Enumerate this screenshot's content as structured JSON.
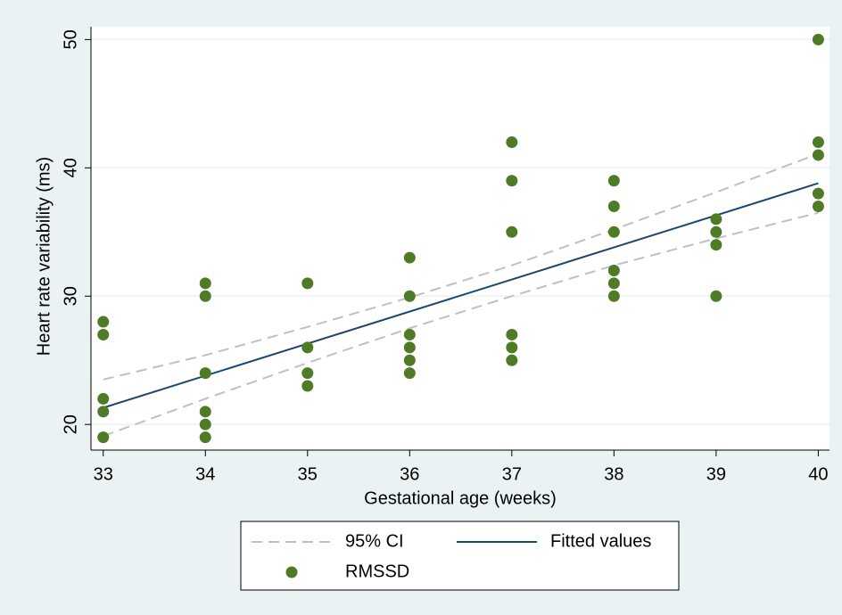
{
  "chart_data": {
    "type": "scatter",
    "x_label": "Gestational age (weeks)",
    "y_label": "Heart rate variability (ms)",
    "xlim": [
      32.88,
      40.11
    ],
    "xticks": [
      33,
      34,
      35,
      36,
      37,
      38,
      39,
      40
    ],
    "ylim": [
      18,
      51
    ],
    "yticks": [
      20,
      30,
      40,
      50
    ],
    "grid": true,
    "legend": "bottom",
    "series": [
      {
        "name": "95% CI",
        "kind": "ci",
        "color": "#c0c0c0",
        "x": [
          33,
          34,
          35,
          36,
          37,
          38,
          39,
          40
        ],
        "upper": [
          23.5,
          25.4,
          27.6,
          29.9,
          32.4,
          35.2,
          38.1,
          41.1
        ],
        "lower": [
          19.1,
          22.0,
          24.8,
          27.5,
          30.0,
          32.4,
          34.5,
          36.5
        ]
      },
      {
        "name": "Fitted values",
        "kind": "line",
        "color": "#1a476f",
        "x": [
          33,
          40
        ],
        "values": [
          21.3,
          38.8
        ]
      },
      {
        "name": "RMSSD",
        "kind": "scatter",
        "color": "#4f7b27",
        "x": [
          33,
          33,
          33,
          33,
          33,
          34,
          34,
          34,
          34,
          34,
          34,
          35,
          35,
          35,
          35,
          36,
          36,
          36,
          36,
          36,
          36,
          37,
          37,
          37,
          37,
          37,
          37,
          38,
          38,
          38,
          38,
          38,
          38,
          39,
          39,
          39,
          39,
          40,
          40,
          40,
          40,
          40
        ],
        "values": [
          28,
          27,
          22,
          21,
          19,
          31,
          30,
          24,
          21,
          20,
          19,
          31,
          26,
          24,
          23,
          33,
          30,
          27,
          26,
          25,
          24,
          42,
          39,
          35,
          27,
          26,
          25,
          39,
          37,
          35,
          32,
          31,
          30,
          36,
          35,
          34,
          30,
          50,
          42,
          41,
          38,
          37
        ]
      }
    ]
  }
}
